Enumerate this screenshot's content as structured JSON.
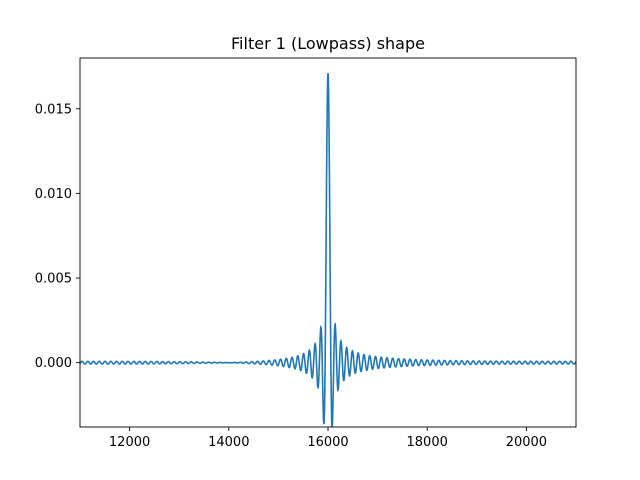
{
  "chart_data": {
    "type": "line",
    "title": "Filter 1 (Lowpass) shape",
    "xlabel": "",
    "ylabel": "",
    "xlim": [
      11000,
      21000
    ],
    "ylim": [
      -0.0038,
      0.018
    ],
    "xticks": [
      12000,
      14000,
      16000,
      18000,
      20000
    ],
    "xtick_labels": [
      "12000",
      "14000",
      "16000",
      "18000",
      "20000"
    ],
    "yticks": [
      0.0,
      0.005,
      0.01,
      0.015
    ],
    "ytick_labels": [
      "0.000",
      "0.005",
      "0.010",
      "0.015"
    ],
    "grid": false,
    "legend": "none",
    "series": [
      {
        "color": "#1f77b4",
        "kind": "windowed-sinc",
        "center": 16000,
        "peak": 0.0171,
        "oscillation_period": 116,
        "x_start": 11000,
        "x_end": 21000
      }
    ]
  }
}
